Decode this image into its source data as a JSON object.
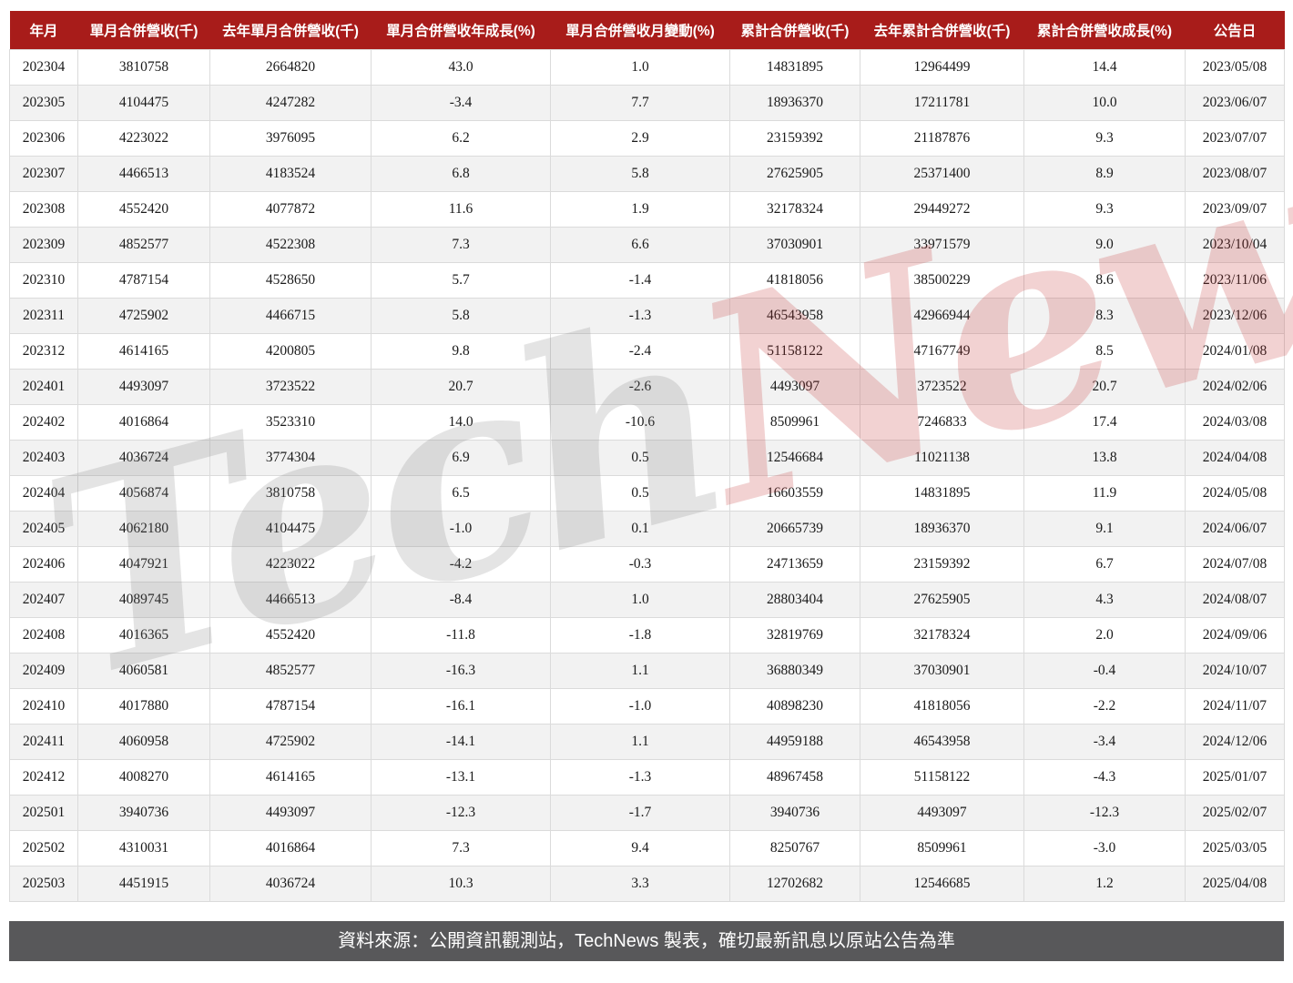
{
  "colors": {
    "header_bg": "#A81C1A",
    "header_text": "#FFFFFF",
    "row_alt_bg": "#F2F2F2",
    "grid_line": "#DBDBDB",
    "footer_bg": "#58585A",
    "footer_text": "#FFFFFF",
    "watermark_gray": "#787878",
    "watermark_red": "#C43030"
  },
  "watermark": {
    "part1": "Tech",
    "part2": "News"
  },
  "footer": {
    "text": "資料來源：公開資訊觀測站，TechNews 製表，確切最新訊息以原站公告為準"
  },
  "chart_data": {
    "type": "table",
    "title": "",
    "columns": [
      "年月",
      "單月合併營收(千)",
      "去年單月合併營收(千)",
      "單月合併營收年成長(%)",
      "單月合併營收月變動(%)",
      "累計合併營收(千)",
      "去年累計合併營收(千)",
      "累計合併營收成長(%)",
      "公告日"
    ],
    "rows": [
      [
        "202304",
        "3810758",
        "2664820",
        "43.0",
        "1.0",
        "14831895",
        "12964499",
        "14.4",
        "2023/05/08"
      ],
      [
        "202305",
        "4104475",
        "4247282",
        "-3.4",
        "7.7",
        "18936370",
        "17211781",
        "10.0",
        "2023/06/07"
      ],
      [
        "202306",
        "4223022",
        "3976095",
        "6.2",
        "2.9",
        "23159392",
        "21187876",
        "9.3",
        "2023/07/07"
      ],
      [
        "202307",
        "4466513",
        "4183524",
        "6.8",
        "5.8",
        "27625905",
        "25371400",
        "8.9",
        "2023/08/07"
      ],
      [
        "202308",
        "4552420",
        "4077872",
        "11.6",
        "1.9",
        "32178324",
        "29449272",
        "9.3",
        "2023/09/07"
      ],
      [
        "202309",
        "4852577",
        "4522308",
        "7.3",
        "6.6",
        "37030901",
        "33971579",
        "9.0",
        "2023/10/04"
      ],
      [
        "202310",
        "4787154",
        "4528650",
        "5.7",
        "-1.4",
        "41818056",
        "38500229",
        "8.6",
        "2023/11/06"
      ],
      [
        "202311",
        "4725902",
        "4466715",
        "5.8",
        "-1.3",
        "46543958",
        "42966944",
        "8.3",
        "2023/12/06"
      ],
      [
        "202312",
        "4614165",
        "4200805",
        "9.8",
        "-2.4",
        "51158122",
        "47167749",
        "8.5",
        "2024/01/08"
      ],
      [
        "202401",
        "4493097",
        "3723522",
        "20.7",
        "-2.6",
        "4493097",
        "3723522",
        "20.7",
        "2024/02/06"
      ],
      [
        "202402",
        "4016864",
        "3523310",
        "14.0",
        "-10.6",
        "8509961",
        "7246833",
        "17.4",
        "2024/03/08"
      ],
      [
        "202403",
        "4036724",
        "3774304",
        "6.9",
        "0.5",
        "12546684",
        "11021138",
        "13.8",
        "2024/04/08"
      ],
      [
        "202404",
        "4056874",
        "3810758",
        "6.5",
        "0.5",
        "16603559",
        "14831895",
        "11.9",
        "2024/05/08"
      ],
      [
        "202405",
        "4062180",
        "4104475",
        "-1.0",
        "0.1",
        "20665739",
        "18936370",
        "9.1",
        "2024/06/07"
      ],
      [
        "202406",
        "4047921",
        "4223022",
        "-4.2",
        "-0.3",
        "24713659",
        "23159392",
        "6.7",
        "2024/07/08"
      ],
      [
        "202407",
        "4089745",
        "4466513",
        "-8.4",
        "1.0",
        "28803404",
        "27625905",
        "4.3",
        "2024/08/07"
      ],
      [
        "202408",
        "4016365",
        "4552420",
        "-11.8",
        "-1.8",
        "32819769",
        "32178324",
        "2.0",
        "2024/09/06"
      ],
      [
        "202409",
        "4060581",
        "4852577",
        "-16.3",
        "1.1",
        "36880349",
        "37030901",
        "-0.4",
        "2024/10/07"
      ],
      [
        "202410",
        "4017880",
        "4787154",
        "-16.1",
        "-1.0",
        "40898230",
        "41818056",
        "-2.2",
        "2024/11/07"
      ],
      [
        "202411",
        "4060958",
        "4725902",
        "-14.1",
        "1.1",
        "44959188",
        "46543958",
        "-3.4",
        "2024/12/06"
      ],
      [
        "202412",
        "4008270",
        "4614165",
        "-13.1",
        "-1.3",
        "48967458",
        "51158122",
        "-4.3",
        "2025/01/07"
      ],
      [
        "202501",
        "3940736",
        "4493097",
        "-12.3",
        "-1.7",
        "3940736",
        "4493097",
        "-12.3",
        "2025/02/07"
      ],
      [
        "202502",
        "4310031",
        "4016864",
        "7.3",
        "9.4",
        "8250767",
        "8509961",
        "-3.0",
        "2025/03/05"
      ],
      [
        "202503",
        "4451915",
        "4036724",
        "10.3",
        "3.3",
        "12702682",
        "12546685",
        "1.2",
        "2025/04/08"
      ]
    ]
  }
}
